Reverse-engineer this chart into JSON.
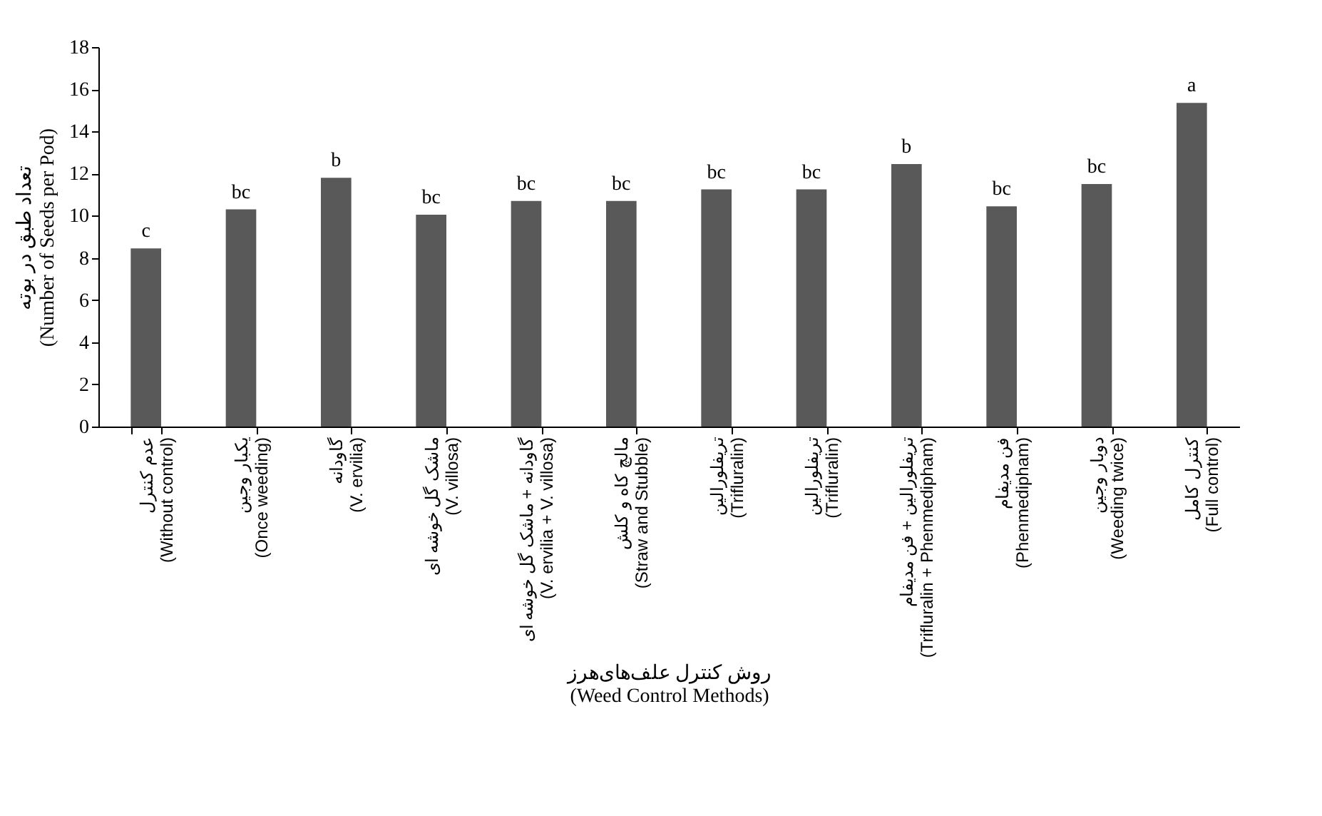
{
  "chart_data": {
    "type": "bar",
    "xlabel": "روش کنترل علف‌های‌هرز\n(Weed Control Methods)",
    "ylabel": "تعداد طبق در بوته\n(Number of Seeds per Pod)",
    "categories": [
      "عدم کنترل\n(Without control)",
      "یکبار وجین\n(Once weeding)",
      "گاودانه\n(V. ervilia)",
      "ماشک گل خوشه ای\n(V. villosa)",
      "گاودانه + ماشک گل خوشه ای\n(V. ervilia + V. villosa)",
      "مالچ کاه و کلش\n(Straw and Stubble)",
      "تریفلورالین\n(Trifluralin)",
      "تریفلورالین\n(Trifluralin)",
      "تریفلورالین + فن مدیفام\n(Trifluralin + Phenmedipham)",
      "فن مدیفام\n(Phenmedipham)",
      "دوبار وجین\n(Weeding twice)",
      "کنترل کامل\n(Full control)"
    ],
    "values": [
      8.45,
      10.3,
      11.8,
      10.05,
      10.7,
      10.7,
      11.25,
      11.25,
      12.45,
      10.45,
      11.5,
      15.35
    ],
    "value_labels": [
      "c",
      "bc",
      "b",
      "bc",
      "bc",
      "bc",
      "bc",
      "bc",
      "b",
      "bc",
      "bc",
      "a"
    ],
    "color": "#595959",
    "ylim": [
      0,
      18
    ],
    "yticks": [
      0,
      2,
      4,
      6,
      8,
      10,
      12,
      14,
      16,
      18
    ],
    "grid": false
  }
}
